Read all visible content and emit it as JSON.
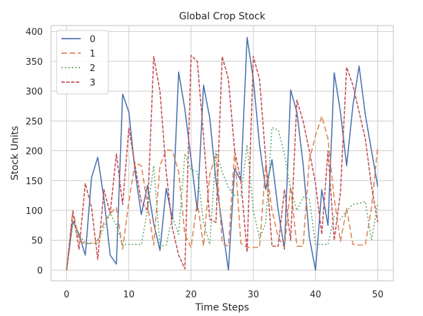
{
  "chart_data": {
    "type": "line",
    "title": "Global Crop Stock",
    "xlabel": "Time Steps",
    "ylabel": "Stock Units",
    "xlim": [
      -2.5,
      52.5
    ],
    "ylim": [
      -18,
      410
    ],
    "xticks": [
      0,
      10,
      20,
      30,
      40,
      50
    ],
    "yticks": [
      0,
      50,
      100,
      150,
      200,
      250,
      300,
      350,
      400
    ],
    "grid": true,
    "legend_position": "top-left",
    "x": [
      0,
      1,
      2,
      3,
      4,
      5,
      6,
      7,
      8,
      9,
      10,
      11,
      12,
      13,
      14,
      15,
      16,
      17,
      18,
      19,
      20,
      21,
      22,
      23,
      24,
      25,
      26,
      27,
      28,
      29,
      30,
      31,
      32,
      33,
      34,
      35,
      36,
      37,
      38,
      39,
      40,
      41,
      42,
      43,
      44,
      45,
      46,
      47,
      48,
      49,
      50
    ],
    "series": [
      {
        "name": "0",
        "color": "#4c72b0",
        "dash": "solid",
        "values": [
          0,
          82,
          60,
          25,
          155,
          189,
          120,
          25,
          10,
          295,
          265,
          165,
          93,
          142,
          78,
          33,
          137,
          85,
          332,
          270,
          185,
          100,
          310,
          255,
          150,
          75,
          0,
          170,
          150,
          390,
          320,
          210,
          135,
          185,
          100,
          35,
          302,
          265,
          178,
          55,
          0,
          135,
          75,
          331,
          265,
          175,
          275,
          342,
          260,
          200,
          140
        ]
      },
      {
        "name": "1",
        "color": "#dd8452",
        "dash": "8,4",
        "values": [
          0,
          100,
          50,
          44,
          45,
          50,
          80,
          95,
          105,
          35,
          115,
          180,
          175,
          110,
          42,
          175,
          202,
          200,
          165,
          60,
          38,
          115,
          40,
          160,
          195,
          45,
          40,
          200,
          45,
          38,
          38,
          38,
          178,
          100,
          55,
          38,
          140,
          40,
          40,
          185,
          225,
          258,
          220,
          120,
          48,
          103,
          43,
          42,
          42,
          105,
          208
        ]
      },
      {
        "name": "2",
        "color": "#55a868",
        "dash": "2,3",
        "values": [
          0,
          82,
          60,
          45,
          45,
          45,
          72,
          95,
          75,
          43,
          43,
          43,
          43,
          100,
          175,
          40,
          42,
          90,
          60,
          195,
          168,
          165,
          80,
          43,
          200,
          165,
          138,
          125,
          125,
          210,
          100,
          53,
          78,
          239,
          235,
          195,
          135,
          100,
          122,
          120,
          43,
          43,
          43,
          90,
          85,
          100,
          110,
          112,
          115,
          50,
          112
        ]
      },
      {
        "name": "3",
        "color": "#c44e52",
        "dash": "5,2",
        "values": [
          0,
          98,
          35,
          145,
          105,
          18,
          135,
          95,
          195,
          110,
          238,
          175,
          115,
          100,
          358,
          300,
          165,
          70,
          25,
          2,
          360,
          350,
          225,
          85,
          80,
          358,
          320,
          200,
          150,
          30,
          358,
          320,
          185,
          40,
          40,
          135,
          50,
          285,
          250,
          200,
          145,
          60,
          200,
          50,
          130,
          340,
          310,
          265,
          220,
          140,
          80
        ]
      }
    ]
  }
}
